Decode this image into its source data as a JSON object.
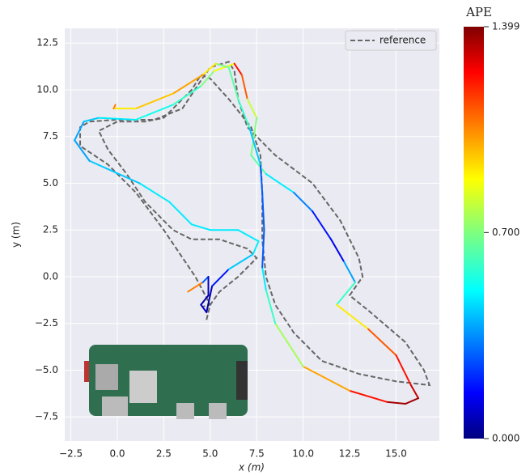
{
  "chart_data": {
    "type": "line",
    "xlabel": "x (m)",
    "ylabel": "y (m)",
    "xlim": [
      -2.83,
      17.33
    ],
    "ylim": [
      -8.79,
      13.29
    ],
    "xticks": [
      {
        "value": -2.5,
        "label": "−2.5"
      },
      {
        "value": 0,
        "label": "0.0"
      },
      {
        "value": 2.5,
        "label": "2.5"
      },
      {
        "value": 5,
        "label": "5.0"
      },
      {
        "value": 7.5,
        "label": "7.5"
      },
      {
        "value": 10,
        "label": "10.0"
      },
      {
        "value": 12.5,
        "label": "12.5"
      },
      {
        "value": 15,
        "label": "15.0"
      }
    ],
    "yticks": [
      {
        "value": -7.5,
        "label": "−7.5"
      },
      {
        "value": -5,
        "label": "−5.0"
      },
      {
        "value": -2.5,
        "label": "−2.5"
      },
      {
        "value": 0,
        "label": "0.0"
      },
      {
        "value": 2.5,
        "label": "2.5"
      },
      {
        "value": 5,
        "label": "5.0"
      },
      {
        "value": 7.5,
        "label": "7.5"
      },
      {
        "value": 10,
        "label": "10.0"
      },
      {
        "value": 12.5,
        "label": "12.5"
      }
    ],
    "grid": true,
    "legend": "upper right",
    "series": [
      {
        "name": "reference",
        "color": "#666666",
        "x": [
          4.8,
          5.0,
          5.5,
          6.5,
          7.5,
          7.0,
          5.5,
          4.0,
          3.0,
          1.5,
          0.5,
          -0.5,
          -1.0,
          0.0,
          1.5,
          2.5,
          4.0,
          4.5,
          5.0,
          6.0,
          7.2,
          7.7,
          7.8,
          7.8,
          8.0,
          8.5,
          9.5,
          11.0,
          13.0,
          15.0,
          16.8,
          16.5,
          15.5,
          13.5,
          12.5,
          13.2,
          13.0,
          12.0,
          10.5,
          8.5,
          7.0,
          6.5,
          6.3,
          6.0,
          5.0,
          4.5,
          3.5,
          2.0,
          0.0,
          -1.5,
          -2.0,
          -2.0,
          -0.5,
          1.0,
          2.5,
          4.2,
          5.0,
          4.6
        ],
        "values": [
          -2.3,
          -1.5,
          -0.8,
          0.0,
          1.0,
          1.5,
          2.0,
          2.0,
          2.5,
          4.0,
          5.5,
          6.8,
          7.8,
          8.3,
          8.3,
          8.5,
          10.0,
          10.8,
          10.6,
          9.5,
          8.0,
          6.5,
          4.5,
          2.0,
          0.0,
          -1.5,
          -3.0,
          -4.5,
          -5.2,
          -5.6,
          -5.8,
          -5.0,
          -3.5,
          -1.8,
          -1.0,
          0.0,
          1.0,
          3.0,
          5.0,
          6.5,
          8.0,
          9.5,
          11.0,
          11.5,
          11.2,
          10.5,
          9.0,
          8.4,
          8.4,
          8.3,
          8.0,
          7.0,
          6.0,
          4.5,
          2.5,
          0.0,
          -1.5,
          -1.6
        ]
      },
      {
        "x": [
          3.8,
          4.6,
          4.9,
          4.9,
          4.5,
          4.8,
          5.1,
          6.0,
          7.3,
          7.6,
          6.5,
          5.0,
          4.0,
          2.8,
          1.2,
          -1.5,
          -2.3,
          -1.8,
          -1.0,
          1.0,
          3.0,
          4.5,
          5.2,
          6.3,
          6.7,
          7.0,
          7.5,
          7.2,
          8.0,
          9.5,
          10.5,
          11.5,
          12.2,
          12.8,
          11.8,
          13.5,
          15.0,
          15.8,
          16.2,
          15.5,
          14.5,
          12.5,
          10.0,
          8.5,
          8.0,
          7.8,
          7.9,
          7.8,
          7.7,
          7.1,
          6.5,
          6.0,
          5.3,
          4.6,
          3.0,
          1.0,
          -0.2,
          -0.1
        ],
        "values": [
          -0.8,
          -0.3,
          0.0,
          -1.0,
          -1.5,
          -1.9,
          -0.5,
          0.4,
          1.2,
          1.9,
          2.5,
          2.5,
          2.8,
          4.0,
          5.0,
          6.2,
          7.3,
          8.3,
          8.5,
          8.4,
          9.2,
          10.2,
          11.0,
          11.4,
          10.8,
          9.5,
          8.5,
          6.5,
          5.5,
          4.5,
          3.5,
          2.0,
          0.8,
          -0.3,
          -1.5,
          -2.8,
          -4.2,
          -5.8,
          -6.5,
          -6.8,
          -6.7,
          -6.1,
          -4.8,
          -2.5,
          -0.7,
          0.5,
          2.5,
          4.5,
          6.0,
          8.0,
          9.5,
          11.2,
          11.4,
          10.8,
          9.8,
          9.0,
          9.0,
          9.2
        ],
        "ape": [
          1.05,
          0.3,
          0.1,
          0.05,
          0.1,
          0.05,
          0.2,
          0.45,
          0.5,
          0.5,
          0.5,
          0.5,
          0.5,
          0.5,
          0.45,
          0.4,
          0.4,
          0.45,
          0.5,
          0.55,
          0.6,
          0.7,
          0.85,
          1.2,
          1.1,
          0.8,
          0.7,
          0.65,
          0.5,
          0.35,
          0.2,
          0.15,
          0.4,
          0.6,
          0.9,
          1.1,
          1.2,
          1.3,
          1.35,
          1.35,
          1.2,
          1.0,
          0.75,
          0.6,
          0.5,
          0.3,
          0.3,
          0.3,
          0.45,
          0.6,
          0.65,
          0.7,
          0.9,
          1.0,
          0.95,
          0.9,
          1.05,
          1.1
        ]
      }
    ],
    "colorbar": {
      "label": "APE",
      "lim": [
        0,
        1.399
      ],
      "ticks": [
        {
          "value": 0,
          "label": "0.000"
        },
        {
          "value": 0.7,
          "label": "0.700"
        },
        {
          "value": 1.399,
          "label": "1.399"
        }
      ]
    }
  }
}
